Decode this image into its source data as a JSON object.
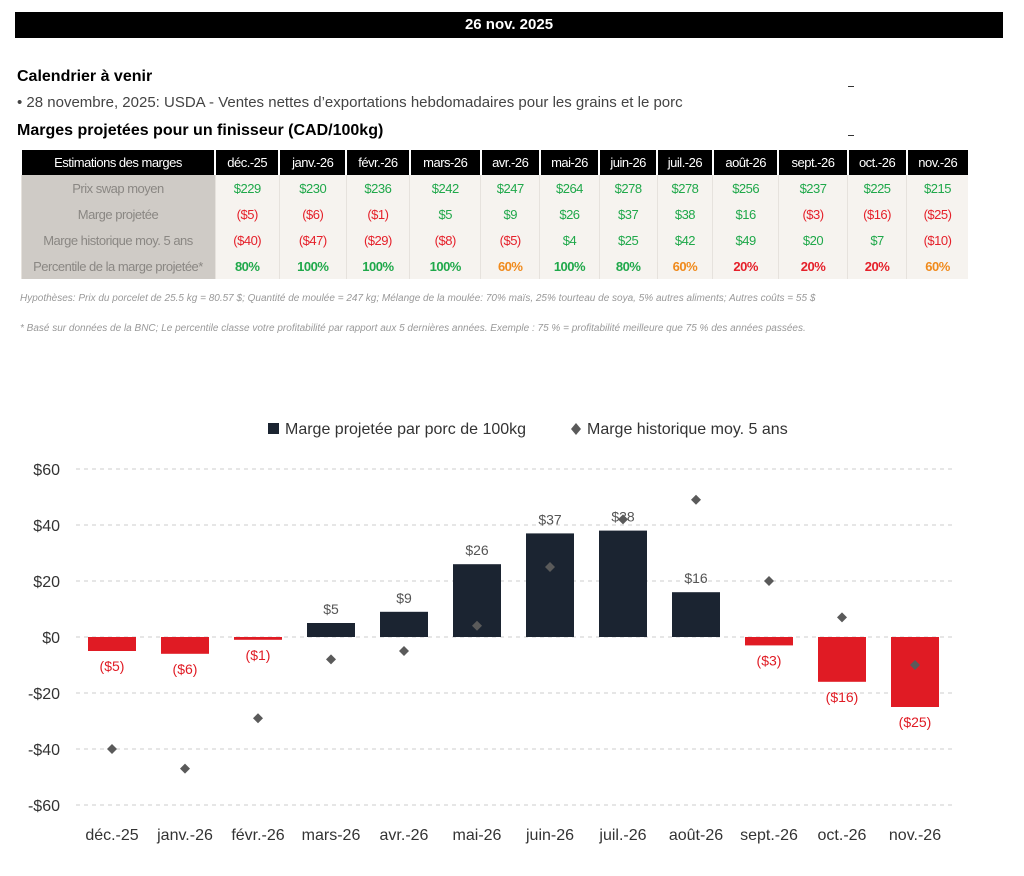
{
  "header": {
    "date": "26 nov. 2025"
  },
  "calendar": {
    "title": "Calendrier à venir",
    "items": [
      "• 28 novembre, 2025: USDA - Ventes nettes d’exportations hebdomadaires pour les grains et le porc"
    ]
  },
  "margins": {
    "title": "Marges projetées pour un finisseur (CAD/100kg)",
    "corner": "Estimations des marges",
    "months": [
      "déc.-25",
      "janv.-26",
      "févr.-26",
      "mars-26",
      "avr.-26",
      "mai-26",
      "juin-26",
      "juil.-26",
      "août-26",
      "sept.-26",
      "oct.-26",
      "nov.-26"
    ],
    "rows": [
      {
        "label": "Prix swap moyen",
        "values": [
          "$229",
          "$230",
          "$236",
          "$242",
          "$247",
          "$264",
          "$278",
          "$278",
          "$256",
          "$237",
          "$225",
          "$215"
        ],
        "colors": [
          "g",
          "g",
          "g",
          "g",
          "g",
          "g",
          "g",
          "g",
          "g",
          "g",
          "g",
          "g"
        ]
      },
      {
        "label": "Marge projetée",
        "values": [
          "($5)",
          "($6)",
          "($1)",
          "$5",
          "$9",
          "$26",
          "$37",
          "$38",
          "$16",
          "($3)",
          "($16)",
          "($25)"
        ],
        "colors": [
          "r",
          "r",
          "r",
          "g",
          "g",
          "g",
          "g",
          "g",
          "g",
          "r",
          "r",
          "r"
        ]
      },
      {
        "label": "Marge historique moy. 5 ans",
        "values": [
          "($40)",
          "($47)",
          "($29)",
          "($8)",
          "($5)",
          "$4",
          "$25",
          "$42",
          "$49",
          "$20",
          "$7",
          "($10)"
        ],
        "colors": [
          "r",
          "r",
          "r",
          "r",
          "r",
          "g",
          "g",
          "g",
          "g",
          "g",
          "g",
          "r"
        ]
      },
      {
        "label": "Percentile de la marge projetée*",
        "values": [
          "80%",
          "100%",
          "100%",
          "100%",
          "60%",
          "100%",
          "80%",
          "60%",
          "20%",
          "20%",
          "20%",
          "60%"
        ],
        "colors": [
          "g",
          "g",
          "g",
          "g",
          "o",
          "g",
          "g",
          "o",
          "r",
          "r",
          "r",
          "o"
        ]
      }
    ],
    "hypotheses": "Hypothèses: Prix du porcelet de 25.5 kg = 80.57 $; Quantité de moulée = 247 kg; Mélange de la moulée: 70% maïs, 25% tourteau de soya, 5% autres aliments; Autres coûts = 55 $",
    "footnote": "* Basé sur données de la BNC; Le percentile classe votre profitabilité par rapport aux 5 dernières années. Exemple : 75 % = profitabilité meilleure que 75 % des années passées."
  },
  "chart_data": {
    "type": "bar",
    "categories": [
      "déc.-25",
      "janv.-26",
      "févr.-26",
      "mars-26",
      "avr.-26",
      "mai-26",
      "juin-26",
      "juil.-26",
      "août-26",
      "sept.-26",
      "oct.-26",
      "nov.-26"
    ],
    "series": [
      {
        "name": "Marge projetée par porc de 100kg",
        "type": "bar",
        "values": [
          -5,
          -6,
          -1,
          5,
          9,
          26,
          37,
          38,
          16,
          -3,
          -16,
          -25
        ],
        "labels": [
          "($5)",
          "($6)",
          "($1)",
          "$5",
          "$9",
          "$26",
          "$37",
          "$38",
          "$16",
          "($3)",
          "($16)",
          "($25)"
        ]
      },
      {
        "name": "Marge historique moy. 5 ans",
        "type": "scatter",
        "marker": "diamond",
        "values": [
          -40,
          -47,
          -29,
          -8,
          -5,
          4,
          25,
          42,
          49,
          20,
          7,
          -10
        ]
      }
    ],
    "yticks": [
      "$60",
      "$40",
      "$20",
      "$0",
      "-$20",
      "-$40",
      "-$60"
    ],
    "ylim": [
      -60,
      60
    ],
    "grid": true,
    "legend": "top",
    "colors": {
      "positive": "#1b2431",
      "negative": "#e01b24",
      "diamond": "#5a5a5a"
    }
  }
}
